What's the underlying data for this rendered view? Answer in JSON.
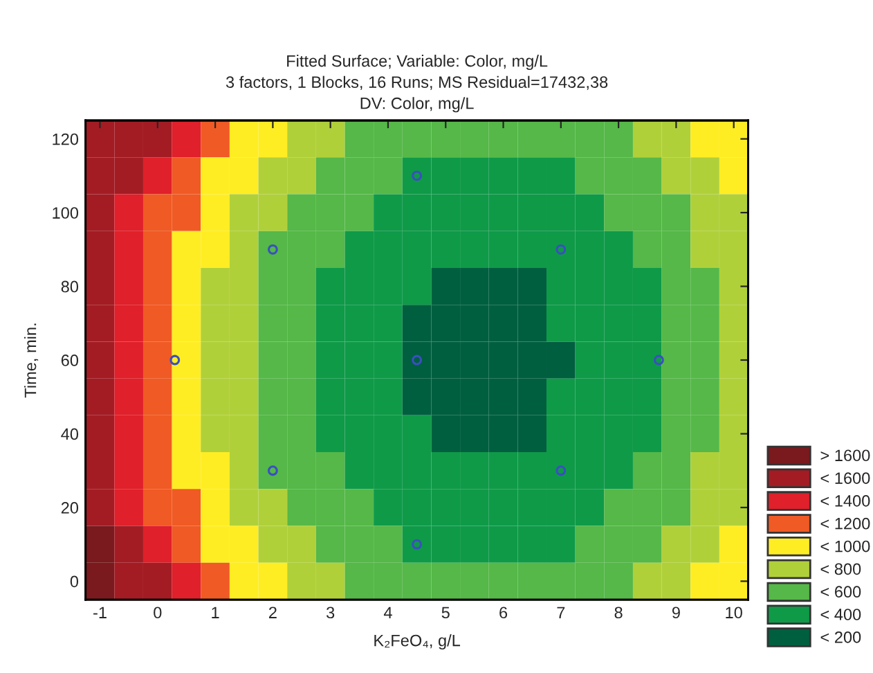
{
  "chart_data": [
    {
      "type": "heatmap",
      "title": "Fitted Surface; Variable: Color, mg/L\n3 factors, 1 Blocks, 16 Runs; MS Residual=17432,38\nDV: Color, mg/L",
      "xlabel": "K₂FeO₄, g/L",
      "ylabel": "Time, min.",
      "categories": [
        null,
        null,
        null,
        null,
        null,
        null,
        null,
        null,
        null,
        null,
        null,
        null,
        null,
        null,
        null,
        null,
        null,
        null,
        null,
        null,
        null,
        null,
        null
      ],
      "y_categories": [
        null,
        null,
        null,
        null,
        null,
        null,
        null,
        null,
        null,
        null,
        null,
        null,
        null
      ],
      "cells": [
        [
          1500,
          1500,
          1500,
          1300,
          1100,
          900,
          900,
          700,
          700,
          500,
          500,
          500,
          500,
          500,
          500,
          500,
          500,
          500,
          500,
          700,
          700,
          900,
          900
        ],
        [
          1500,
          1500,
          1300,
          1100,
          900,
          900,
          700,
          700,
          500,
          500,
          500,
          300,
          300,
          300,
          300,
          300,
          300,
          500,
          500,
          500,
          700,
          700,
          900
        ],
        [
          1500,
          1300,
          1100,
          1100,
          900,
          700,
          700,
          500,
          500,
          500,
          300,
          300,
          300,
          300,
          300,
          300,
          300,
          300,
          500,
          500,
          500,
          700,
          700
        ],
        [
          1500,
          1300,
          1100,
          900,
          900,
          700,
          500,
          500,
          500,
          300,
          300,
          300,
          300,
          300,
          300,
          300,
          300,
          300,
          300,
          500,
          500,
          700,
          700
        ],
        [
          1500,
          1300,
          1100,
          900,
          700,
          700,
          500,
          500,
          300,
          300,
          300,
          300,
          100,
          100,
          100,
          100,
          300,
          300,
          300,
          300,
          500,
          500,
          700
        ],
        [
          1500,
          1300,
          1100,
          900,
          700,
          700,
          500,
          500,
          300,
          300,
          300,
          100,
          100,
          100,
          100,
          100,
          300,
          300,
          300,
          300,
          500,
          500,
          700
        ],
        [
          1500,
          1300,
          1100,
          900,
          700,
          700,
          500,
          500,
          300,
          300,
          300,
          100,
          100,
          100,
          100,
          100,
          100,
          300,
          300,
          300,
          500,
          500,
          700
        ],
        [
          1500,
          1300,
          1100,
          900,
          700,
          700,
          500,
          500,
          300,
          300,
          300,
          100,
          100,
          100,
          100,
          100,
          300,
          300,
          300,
          300,
          500,
          500,
          700
        ],
        [
          1500,
          1300,
          1100,
          900,
          700,
          700,
          500,
          500,
          300,
          300,
          300,
          300,
          100,
          100,
          100,
          100,
          300,
          300,
          300,
          300,
          500,
          500,
          700
        ],
        [
          1500,
          1300,
          1100,
          900,
          900,
          700,
          500,
          500,
          500,
          300,
          300,
          300,
          300,
          300,
          300,
          300,
          300,
          300,
          300,
          500,
          500,
          700,
          700
        ],
        [
          1500,
          1300,
          1100,
          1100,
          900,
          700,
          700,
          500,
          500,
          500,
          300,
          300,
          300,
          300,
          300,
          300,
          300,
          300,
          500,
          500,
          500,
          700,
          700
        ],
        [
          1700,
          1500,
          1300,
          1100,
          900,
          900,
          700,
          700,
          500,
          500,
          500,
          300,
          300,
          300,
          300,
          300,
          300,
          500,
          500,
          500,
          700,
          700,
          900
        ],
        [
          1700,
          1500,
          1500,
          1300,
          1100,
          900,
          900,
          700,
          700,
          500,
          500,
          500,
          500,
          500,
          500,
          500,
          500,
          500,
          500,
          700,
          700,
          900,
          900
        ]
      ],
      "cticks": [
        {
          "value": 1700,
          "label": "> 1600"
        },
        {
          "value": 1500,
          "label": "< 1600"
        },
        {
          "value": 1300,
          "label": "< 1400"
        },
        {
          "value": 1100,
          "label": "< 1200"
        },
        {
          "value": 900,
          "label": "< 1000"
        },
        {
          "value": 700,
          "label": "< 800"
        },
        {
          "value": 500,
          "label": "< 600"
        },
        {
          "value": 300,
          "label": "< 400"
        },
        {
          "value": 100,
          "label": "< 200"
        }
      ],
      "colors": [
        "#7a1a1e",
        "#a31c24",
        "#e0202a",
        "#f05a24",
        "#ffed23",
        "#b0d03a",
        "#55b848",
        "#0f9a48",
        "#005f3f"
      ]
    },
    {
      "type": "scatter",
      "xlim": [
        -1.25,
        10.25
      ],
      "ylim": [
        -5,
        125
      ],
      "xticks": [
        -1,
        0,
        1,
        2,
        3,
        4,
        5,
        6,
        7,
        8,
        9,
        10
      ],
      "yticks": [
        0,
        20,
        40,
        60,
        80,
        100,
        120
      ],
      "series": [
        {
          "color": "#3a4fc0",
          "marker": "circle",
          "x": [
            2,
            2,
            0.3,
            4.5,
            4.5,
            4.5,
            7,
            7,
            8.7
          ],
          "values": [
            90,
            30,
            60,
            110,
            60,
            10,
            90,
            30,
            60
          ]
        }
      ]
    }
  ]
}
